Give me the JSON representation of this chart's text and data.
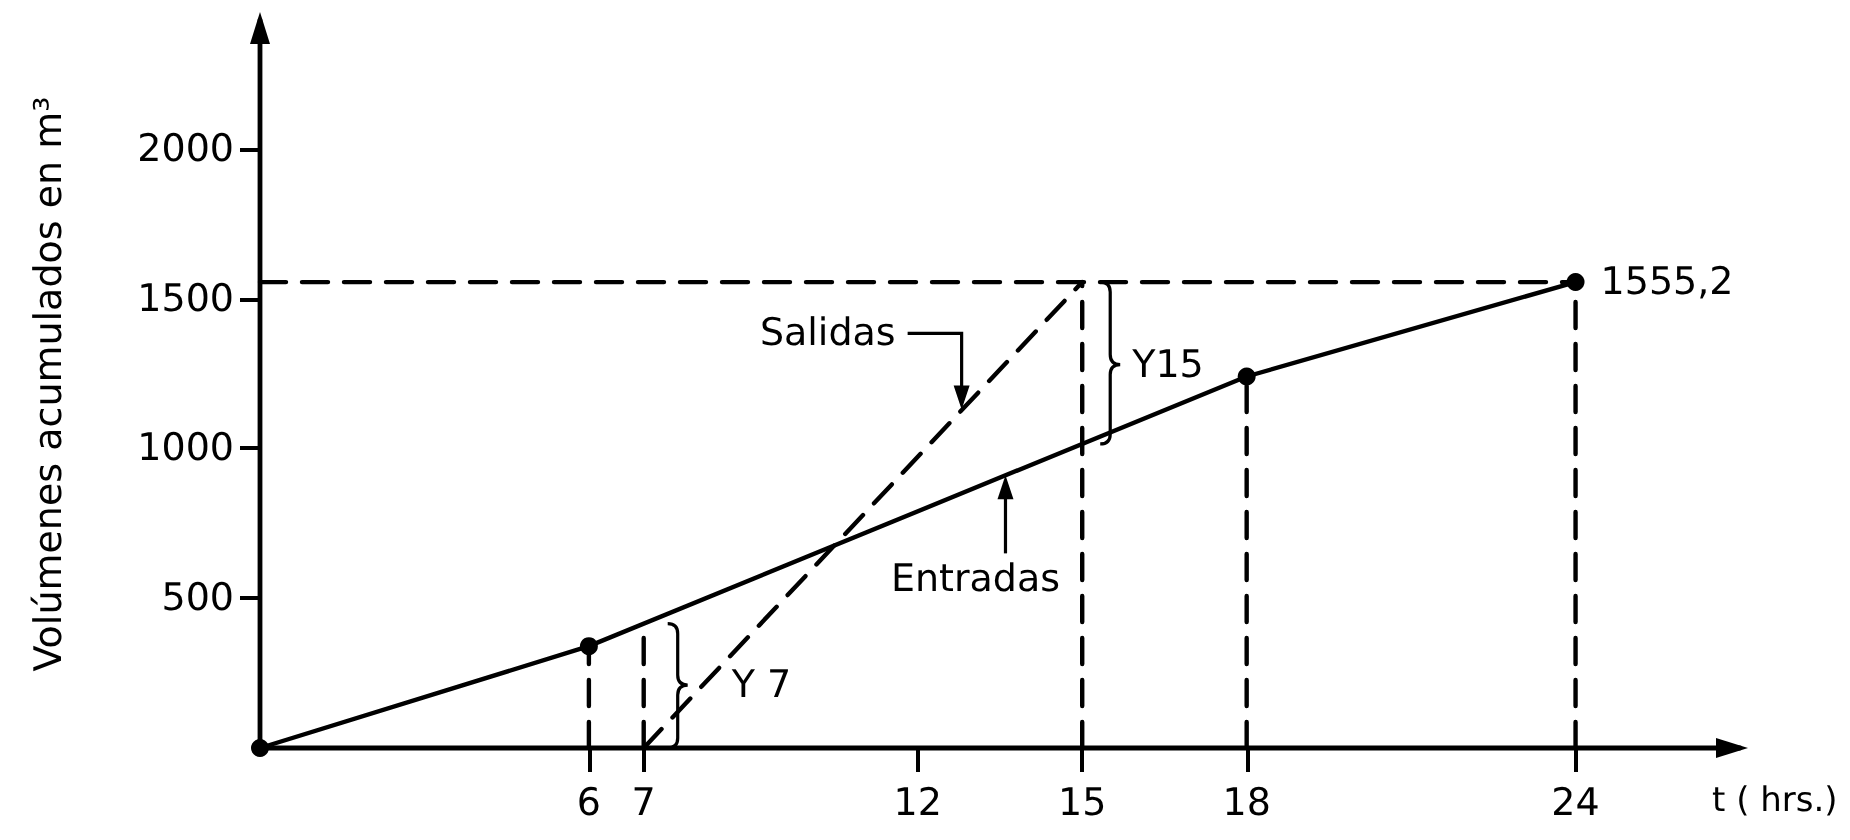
{
  "chart_data": {
    "type": "line",
    "xlabel": "t ( hrs.)",
    "ylabel": "Volúmenes acumulados en m³",
    "xlim": [
      0,
      27
    ],
    "ylim": [
      0,
      2430
    ],
    "xticks": [
      6,
      7,
      12,
      15,
      18,
      24
    ],
    "yticks": [
      500,
      1000,
      1500,
      2000
    ],
    "series": [
      {
        "color": "#000000",
        "x": [
          0,
          6,
          18,
          24
        ],
        "values": [
          0,
          340,
          1240,
          1555.2
        ],
        "marker": "circle",
        "line_style": "solid",
        "value_labels": [
          null,
          null,
          null,
          "1555,2"
        ]
      },
      {
        "color": "#000000",
        "x": [
          7,
          15
        ],
        "values": [
          0,
          1555.2
        ],
        "marker": "none",
        "line_style": "dashed"
      },
      {
        "color": "#000000",
        "x": [
          0,
          24
        ],
        "values": [
          1555.2,
          1555.2
        ],
        "marker": "none",
        "line_style": "dashed"
      },
      {
        "color": "#000000",
        "x": [
          6,
          6
        ],
        "values": [
          0,
          340
        ],
        "marker": "none",
        "line_style": "dashed"
      },
      {
        "color": "#000000",
        "x": [
          7,
          7
        ],
        "values": [
          0,
          415
        ],
        "marker": "none",
        "line_style": "dashed"
      },
      {
        "color": "#000000",
        "x": [
          15,
          15
        ],
        "values": [
          0,
          1555.2
        ],
        "marker": "none",
        "line_style": "dashed"
      },
      {
        "color": "#000000",
        "x": [
          18,
          18
        ],
        "values": [
          0,
          1240
        ],
        "marker": "none",
        "line_style": "dashed"
      },
      {
        "color": "#000000",
        "x": [
          24,
          24
        ],
        "values": [
          0,
          1555.2
        ],
        "marker": "none",
        "line_style": "dashed"
      }
    ],
    "annotations": [
      {
        "text": "Salidas",
        "x": 12.8,
        "y": 1130
      },
      {
        "text": "Entradas",
        "x": 13.6,
        "y": 910
      },
      {
        "text": "Y 7",
        "x": 7,
        "y": 210
      },
      {
        "text": "Y15",
        "x": 15,
        "y": 1280
      }
    ]
  }
}
